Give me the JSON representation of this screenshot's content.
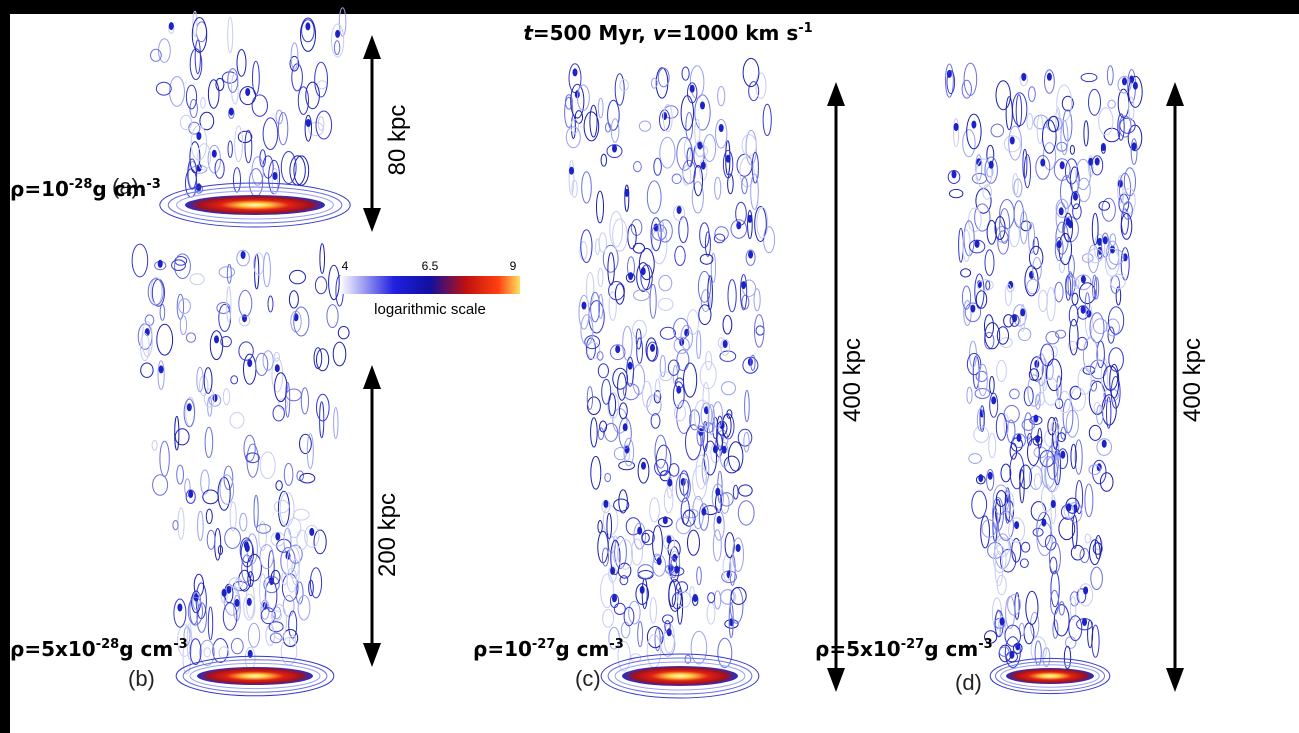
{
  "title": {
    "parts": [
      "t",
      "=500 Myr, ",
      "v",
      "=1000 km s",
      "-1"
    ]
  },
  "colorbar": {
    "ticks": [
      4,
      6.5,
      9
    ],
    "label": "logarithmic scale"
  },
  "panels": [
    {
      "letter": "(a)",
      "density": [
        "ρ=10",
        "-28",
        "g cm",
        "-3"
      ],
      "scale": "80 kpc"
    },
    {
      "letter": "(b)",
      "density": [
        "ρ=5x10",
        "-28",
        "g cm",
        "-3"
      ],
      "scale": "200 kpc"
    },
    {
      "letter": "(c)",
      "density": [
        "ρ=10",
        "-27",
        "g cm",
        "-3"
      ],
      "scale": "400 kpc"
    },
    {
      "letter": "(d)",
      "density": [
        "ρ=5x10",
        "-27",
        "g cm",
        "-3"
      ],
      "scale": "400 kpc"
    }
  ]
}
